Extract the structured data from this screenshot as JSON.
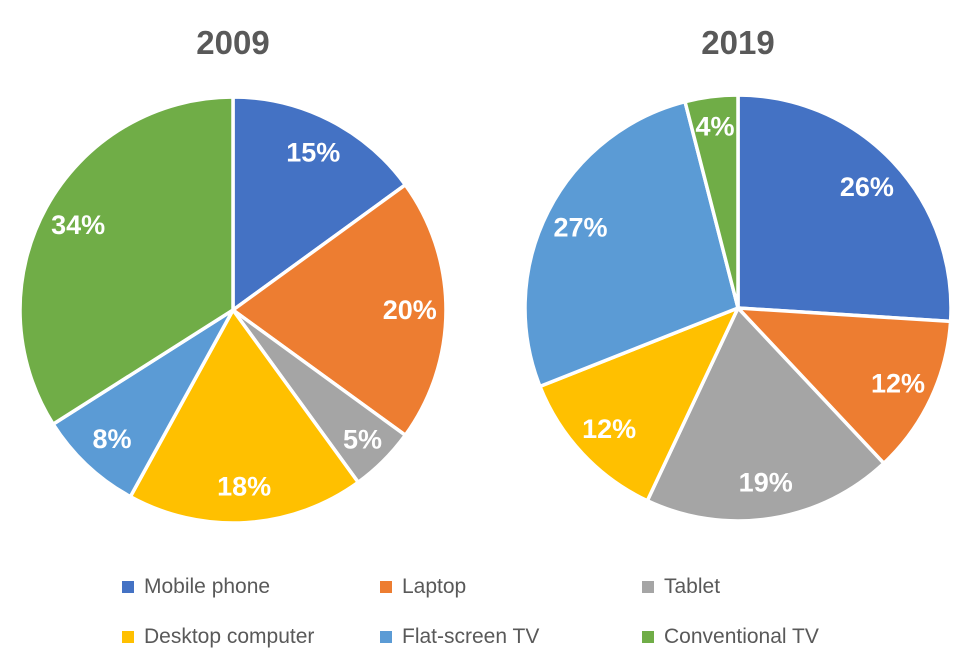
{
  "style": {
    "background": "#ffffff",
    "title_color": "#595959",
    "legend_text_color": "#595959",
    "data_label_color": "#ffffff",
    "slice_border_color": "#ffffff"
  },
  "legend": {
    "position": "bottom",
    "items": [
      {
        "label": "Mobile phone",
        "color": "#4472C4"
      },
      {
        "label": "Laptop",
        "color": "#ED7D31"
      },
      {
        "label": "Tablet",
        "color": "#A5A5A5"
      },
      {
        "label": "Desktop computer",
        "color": "#FFC000"
      },
      {
        "label": "Flat-screen TV",
        "color": "#5B9BD5"
      },
      {
        "label": "Conventional TV",
        "color": "#70AD47"
      }
    ]
  },
  "chart_data": [
    {
      "type": "pie",
      "title": "2009",
      "categories": [
        "Mobile phone",
        "Laptop",
        "Tablet",
        "Desktop computer",
        "Flat-screen TV",
        "Conventional TV"
      ],
      "values": [
        15,
        20,
        5,
        18,
        8,
        34
      ],
      "labels": [
        "15%",
        "20%",
        "5%",
        "18%",
        "8%",
        "34%"
      ],
      "colors": [
        "#4472C4",
        "#ED7D31",
        "#A5A5A5",
        "#FFC000",
        "#5B9BD5",
        "#70AD47"
      ],
      "start_angle_deg": 0,
      "direction": "clockwise",
      "data_labels": "inside",
      "legend_position": "bottom"
    },
    {
      "type": "pie",
      "title": "2019",
      "categories": [
        "Mobile phone",
        "Laptop",
        "Tablet",
        "Desktop computer",
        "Flat-screen TV",
        "Conventional TV"
      ],
      "values": [
        26,
        12,
        19,
        12,
        27,
        4
      ],
      "labels": [
        "26%",
        "12%",
        "19%",
        "12%",
        "27%",
        "4%"
      ],
      "colors": [
        "#4472C4",
        "#ED7D31",
        "#A5A5A5",
        "#FFC000",
        "#5B9BD5",
        "#70AD47"
      ],
      "start_angle_deg": 0,
      "direction": "clockwise",
      "data_labels": "inside",
      "legend_position": "bottom"
    }
  ]
}
